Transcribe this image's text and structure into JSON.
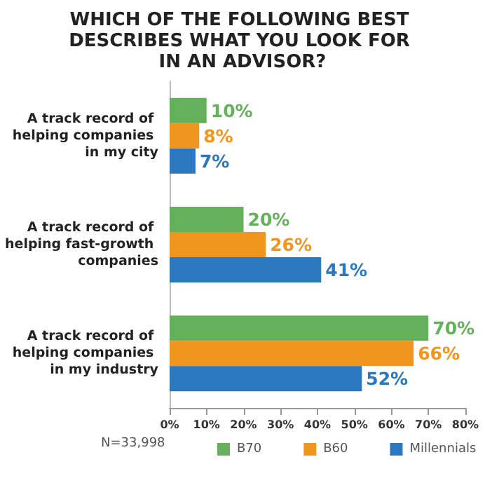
{
  "chart_data": {
    "type": "bar",
    "orientation": "horizontal",
    "title": "WHICH OF THE FOLLOWING BEST DESCRIBES WHAT YOU LOOK FOR IN AN ADVISOR?",
    "categories": [
      "A track record of helping companies in my city",
      "A track record of helping fast-growth companies",
      "A track record of helping companies in my industry"
    ],
    "series": [
      {
        "name": "B70",
        "color": "#65b05a",
        "values": [
          10,
          20,
          70
        ],
        "value_labels": [
          "10%",
          "20%",
          "70%"
        ]
      },
      {
        "name": "B60",
        "color": "#f0961e",
        "values": [
          8,
          26,
          66
        ],
        "value_labels": [
          "8%",
          "26%",
          "66%"
        ]
      },
      {
        "name": "Millennials",
        "color": "#2b78be",
        "values": [
          7,
          41,
          52
        ],
        "value_labels": [
          "7%",
          "41%",
          "52%"
        ]
      }
    ],
    "xlim": [
      0,
      80
    ],
    "xticks": [
      {
        "value": 0,
        "label": "0%"
      },
      {
        "value": 10,
        "label": "10%"
      },
      {
        "value": 20,
        "label": "20%"
      },
      {
        "value": 30,
        "label": "30%"
      },
      {
        "value": 40,
        "label": "40%"
      },
      {
        "value": 50,
        "label": "50%"
      },
      {
        "value": 60,
        "label": "60%"
      },
      {
        "value": 70,
        "label": "70%"
      },
      {
        "value": 80,
        "label": "80%"
      }
    ],
    "grid": false,
    "legend": "bottom",
    "annotations": [
      "N=33,998"
    ]
  }
}
